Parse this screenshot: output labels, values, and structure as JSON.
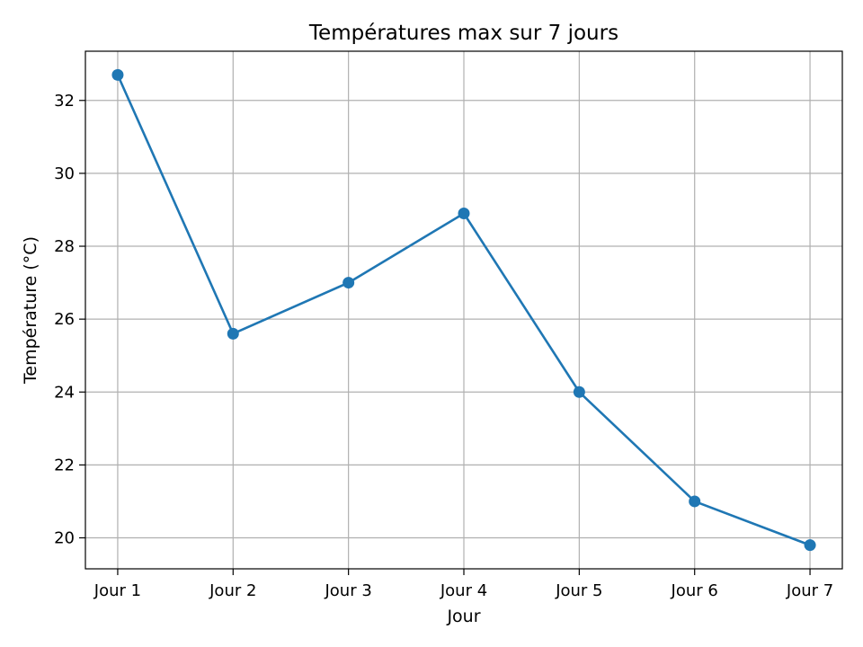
{
  "chart_data": {
    "type": "line",
    "title": "Températures max sur 7 jours",
    "xlabel": "Jour",
    "ylabel": "Température (°C)",
    "categories": [
      "Jour 1",
      "Jour 2",
      "Jour 3",
      "Jour 4",
      "Jour 5",
      "Jour 6",
      "Jour 7"
    ],
    "series": [
      {
        "values": [
          32.7,
          25.6,
          27.0,
          28.9,
          24.0,
          21.0,
          19.8
        ]
      }
    ],
    "yticks": [
      20,
      22,
      24,
      26,
      28,
      30,
      32
    ],
    "ylim": [
      19.15,
      33.35
    ],
    "grid": true,
    "colors": {
      "line": "#1f77b4",
      "grid": "#b0b0b0",
      "axes": "#000000"
    }
  }
}
